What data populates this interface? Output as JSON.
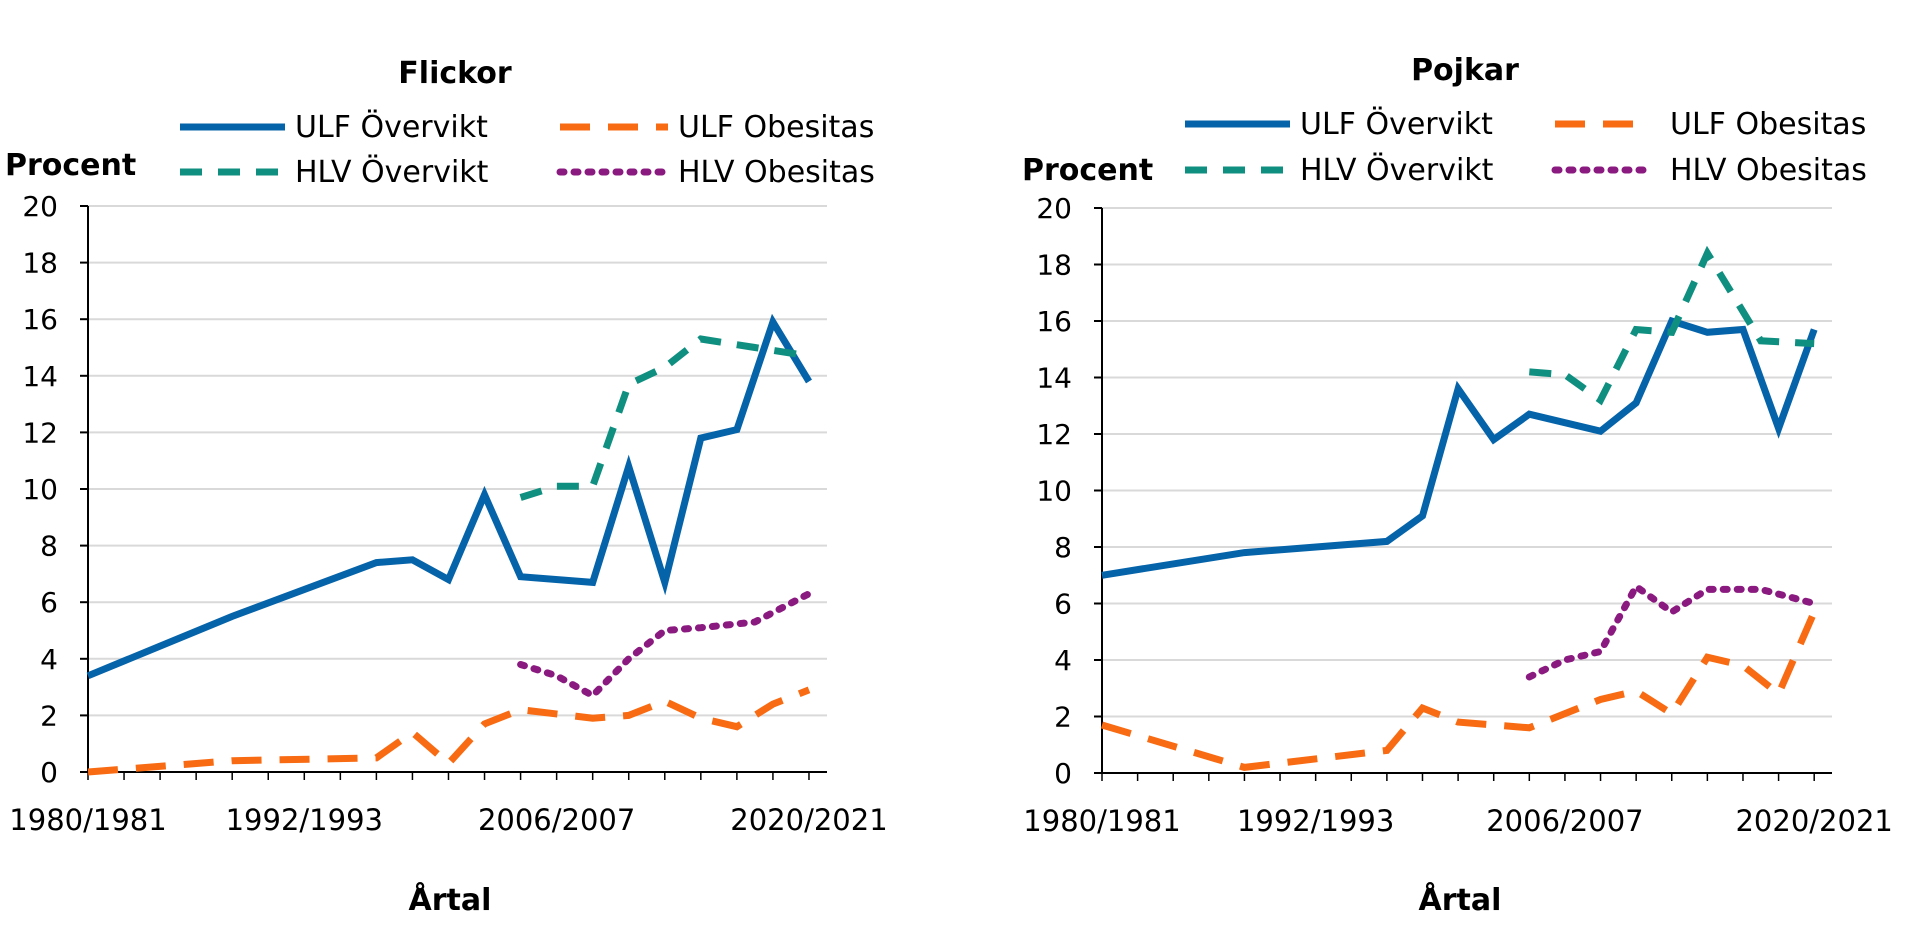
{
  "colors": {
    "ulf_overvikt": "#0563AA",
    "hlv_overvikt": "#0F8F80",
    "ulf_obesitas": "#F86B12",
    "hlv_obesitas": "#8A1A7F",
    "grid": "#D9D9D9",
    "axis": "#000000"
  },
  "chart_data": [
    {
      "type": "line",
      "title": "Flickor",
      "ylabel": "Procent",
      "xlabel": "Årtal",
      "ylim": [
        0,
        20
      ],
      "yticks": [
        0,
        2,
        4,
        6,
        8,
        10,
        12,
        14,
        16,
        18,
        20
      ],
      "xlim": [
        1980,
        2021
      ],
      "x_tick_labels": [
        {
          "x": 1980,
          "label": "1980/1981"
        },
        {
          "x": 1992,
          "label": "1992/1993"
        },
        {
          "x": 2006,
          "label": "2006/2007"
        },
        {
          "x": 2020,
          "label": "2020/2021"
        }
      ],
      "grid": true,
      "legend": "top",
      "series": [
        {
          "name": "ULF Övervikt",
          "key": "ulf_overvikt",
          "dash": "solid",
          "points": [
            [
              1980,
              3.4
            ],
            [
              1988,
              5.5
            ],
            [
              1996,
              7.4
            ],
            [
              1998,
              7.5
            ],
            [
              2000,
              6.8
            ],
            [
              2002,
              9.8
            ],
            [
              2004,
              6.9
            ],
            [
              2008,
              6.7
            ],
            [
              2010,
              10.8
            ],
            [
              2012,
              6.7
            ],
            [
              2014,
              11.8
            ],
            [
              2016,
              12.1
            ],
            [
              2018,
              15.9
            ],
            [
              2020,
              13.8
            ]
          ]
        },
        {
          "name": "ULF Obesitas",
          "key": "ulf_obesitas",
          "dash": "dashed",
          "points": [
            [
              1980,
              0.0
            ],
            [
              1988,
              0.4
            ],
            [
              1996,
              0.5
            ],
            [
              1998,
              1.4
            ],
            [
              2000,
              0.3
            ],
            [
              2002,
              1.7
            ],
            [
              2004,
              2.2
            ],
            [
              2008,
              1.9
            ],
            [
              2010,
              2.0
            ],
            [
              2012,
              2.5
            ],
            [
              2014,
              1.9
            ],
            [
              2016,
              1.6
            ],
            [
              2018,
              2.4
            ],
            [
              2020,
              2.9
            ]
          ]
        },
        {
          "name": "HLV Övervikt",
          "key": "hlv_overvikt",
          "dash": "dash-long",
          "points": [
            [
              2004,
              9.7
            ],
            [
              2006,
              10.1
            ],
            [
              2008,
              10.1
            ],
            [
              2010,
              13.7
            ],
            [
              2012,
              14.3
            ],
            [
              2014,
              15.3
            ],
            [
              2017,
              15.0
            ],
            [
              2020,
              14.7
            ]
          ]
        },
        {
          "name": "HLV Obesitas",
          "key": "hlv_obesitas",
          "dash": "dotted",
          "points": [
            [
              2004,
              3.8
            ],
            [
              2006,
              3.4
            ],
            [
              2008,
              2.7
            ],
            [
              2010,
              4.0
            ],
            [
              2012,
              5.0
            ],
            [
              2014,
              5.1
            ],
            [
              2017,
              5.3
            ],
            [
              2020,
              6.3
            ]
          ]
        }
      ]
    },
    {
      "type": "line",
      "title": "Pojkar",
      "ylabel": "Procent",
      "xlabel": "Årtal",
      "ylim": [
        0,
        20
      ],
      "yticks": [
        0,
        2,
        4,
        6,
        8,
        10,
        12,
        14,
        16,
        18,
        20
      ],
      "xlim": [
        1980,
        2021
      ],
      "x_tick_labels": [
        {
          "x": 1980,
          "label": "1980/1981"
        },
        {
          "x": 1992,
          "label": "1992/1993"
        },
        {
          "x": 2006,
          "label": "2006/2007"
        },
        {
          "x": 2020,
          "label": "2020/2021"
        }
      ],
      "grid": true,
      "legend": "top",
      "series": [
        {
          "name": "ULF Övervikt",
          "key": "ulf_overvikt",
          "dash": "solid",
          "points": [
            [
              1980,
              7.0
            ],
            [
              1988,
              7.8
            ],
            [
              1996,
              8.2
            ],
            [
              1998,
              9.1
            ],
            [
              2000,
              13.6
            ],
            [
              2002,
              11.8
            ],
            [
              2004,
              12.7
            ],
            [
              2008,
              12.1
            ],
            [
              2010,
              13.1
            ],
            [
              2012,
              16.0
            ],
            [
              2014,
              15.6
            ],
            [
              2016,
              15.7
            ],
            [
              2018,
              12.2
            ],
            [
              2020,
              15.7
            ]
          ]
        },
        {
          "name": "ULF Obesitas",
          "key": "ulf_obesitas",
          "dash": "dashed",
          "points": [
            [
              1980,
              1.7
            ],
            [
              1988,
              0.2
            ],
            [
              1996,
              0.8
            ],
            [
              1998,
              2.3
            ],
            [
              2000,
              1.8
            ],
            [
              2004,
              1.6
            ],
            [
              2008,
              2.6
            ],
            [
              2010,
              2.9
            ],
            [
              2012,
              2.1
            ],
            [
              2014,
              4.1
            ],
            [
              2016,
              3.8
            ],
            [
              2018,
              2.8
            ],
            [
              2020,
              5.7
            ]
          ]
        },
        {
          "name": "HLV Övervikt",
          "key": "hlv_overvikt",
          "dash": "dash-long",
          "points": [
            [
              2004,
              14.2
            ],
            [
              2006,
              14.1
            ],
            [
              2008,
              13.2
            ],
            [
              2010,
              15.7
            ],
            [
              2012,
              15.6
            ],
            [
              2014,
              18.4
            ],
            [
              2017,
              15.3
            ],
            [
              2020,
              15.2
            ]
          ]
        },
        {
          "name": "HLV Obesitas",
          "key": "hlv_obesitas",
          "dash": "dotted",
          "points": [
            [
              2004,
              3.4
            ],
            [
              2006,
              4.0
            ],
            [
              2008,
              4.3
            ],
            [
              2010,
              6.6
            ],
            [
              2012,
              5.7
            ],
            [
              2014,
              6.5
            ],
            [
              2017,
              6.5
            ],
            [
              2020,
              6.0
            ]
          ]
        }
      ]
    }
  ]
}
